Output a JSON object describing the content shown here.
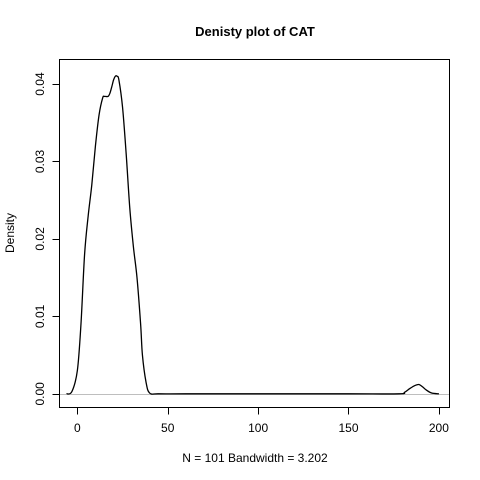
{
  "chart_data": {
    "type": "line",
    "title": "Denisty plot of  CAT",
    "xlabel": "N = 101   Bandwidth = 3.202",
    "ylabel": "Density",
    "xlim": [
      -9.6,
      205.6
    ],
    "ylim": [
      -0.0017,
      0.0431
    ],
    "x_ticks": [
      0,
      50,
      100,
      150,
      200
    ],
    "y_ticks": [
      0.0,
      0.01,
      0.02,
      0.03,
      0.04
    ],
    "y_tick_labels": [
      "0.00",
      "0.01",
      "0.02",
      "0.03",
      "0.04"
    ],
    "reference_line_y": 0,
    "series": [
      {
        "x": [
          -6,
          -3,
          0,
          2,
          4,
          6,
          8,
          10,
          12,
          14,
          15,
          17,
          18,
          19,
          20,
          21,
          22,
          23,
          25,
          27,
          29,
          31,
          33,
          35,
          36,
          38,
          40,
          45,
          60,
          100,
          150,
          178,
          181,
          184,
          187,
          189,
          191,
          193,
          196,
          200
        ],
        "y": [
          0.0,
          0.0003,
          0.003,
          0.009,
          0.018,
          0.023,
          0.027,
          0.032,
          0.036,
          0.0382,
          0.0384,
          0.0384,
          0.0388,
          0.0396,
          0.0405,
          0.041,
          0.041,
          0.0405,
          0.037,
          0.031,
          0.024,
          0.019,
          0.015,
          0.009,
          0.005,
          0.0015,
          0.0001,
          0.0,
          0.0,
          0.0,
          0.0,
          0.0,
          0.0002,
          0.0007,
          0.0011,
          0.0012,
          0.0009,
          0.0005,
          0.0001,
          0.0
        ]
      }
    ],
    "colors": {
      "line": "#000000",
      "reference_line": "#bebebe",
      "axes": "#000000"
    },
    "grid": false
  }
}
